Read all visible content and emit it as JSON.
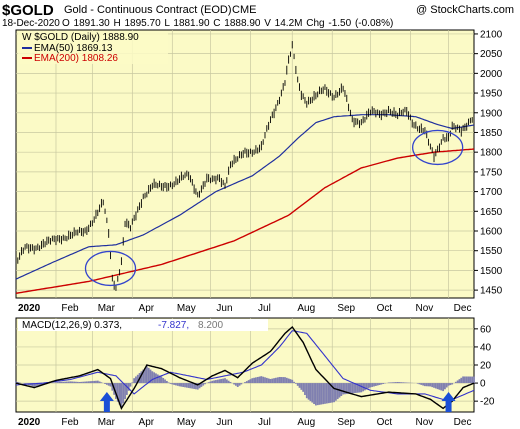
{
  "header": {
    "symbol": "$GOLD",
    "title": "Gold - Continuous Contract (EOD)",
    "exchange": "CME",
    "credit": "@ StockCharts.com",
    "date": "18-Dec-2020",
    "ohlc": "O 1891.30  H 1895.70  L 1881.90  C 1888.90  V 14.2M  Chg -1.50 (-0.08%)"
  },
  "colors": {
    "panel_bg": "#fbfac6",
    "grid": "#c8c8a0",
    "price": "#000000",
    "ema50": "#1f2f9e",
    "ema200": "#cc0000",
    "macd_line": "#000000",
    "signal_line": "#3333cc",
    "histogram": "#8080b0",
    "circle": "#3344cc",
    "arrow": "#1a4fd6"
  },
  "chart_data": [
    {
      "type": "line",
      "panel": "price",
      "legend_position": "top-left",
      "legend": {
        "price": "$GOLD (Daily) 1888.90",
        "ema50": "EMA(50) 1869.13",
        "ema200": "EMA(200) 1808.26"
      },
      "ylim": [
        1430,
        2110
      ],
      "y_ticks": [
        1450,
        1500,
        1550,
        1600,
        1650,
        1700,
        1750,
        1800,
        1850,
        1900,
        1950,
        2000,
        2050,
        2100
      ],
      "x_ticks": [
        "2020",
        "Feb",
        "Mar",
        "Apr",
        "May",
        "Jun",
        "Jul",
        "Aug",
        "Sep",
        "Oct",
        "Nov",
        "Dec"
      ],
      "x_tick_days": [
        0,
        22,
        42,
        64,
        86,
        107,
        129,
        152,
        174,
        195,
        217,
        238
      ],
      "x_range_days": [
        0,
        252
      ],
      "price": {
        "days": [
          0,
          5,
          10,
          18,
          25,
          32,
          38,
          44,
          48,
          51,
          53,
          55,
          58,
          60,
          63,
          66,
          70,
          75,
          80,
          85,
          90,
          95,
          100,
          105,
          108,
          112,
          115,
          118,
          122,
          126,
          130,
          135,
          140,
          145,
          148,
          150,
          152,
          155,
          157,
          160,
          165,
          170,
          175,
          180,
          185,
          190,
          195,
          200,
          205,
          210,
          215,
          218,
          222,
          225,
          228,
          230,
          233,
          235,
          238,
          240,
          245,
          250,
          252
        ],
        "values": [
          1518,
          1555,
          1560,
          1570,
          1585,
          1590,
          1600,
          1640,
          1670,
          1595,
          1480,
          1460,
          1525,
          1620,
          1605,
          1640,
          1690,
          1715,
          1710,
          1720,
          1730,
          1740,
          1695,
          1730,
          1725,
          1735,
          1720,
          1770,
          1780,
          1800,
          1805,
          1810,
          1880,
          1940,
          1980,
          2030,
          2065,
          1980,
          1950,
          1930,
          1940,
          1960,
          1945,
          1960,
          1880,
          1880,
          1900,
          1895,
          1910,
          1890,
          1905,
          1880,
          1860,
          1850,
          1810,
          1790,
          1820,
          1840,
          1835,
          1860,
          1855,
          1885,
          1890
        ]
      },
      "ema50": {
        "days": [
          0,
          20,
          40,
          55,
          70,
          90,
          110,
          130,
          145,
          155,
          165,
          175,
          190,
          205,
          220,
          232,
          240,
          252
        ],
        "values": [
          1478,
          1520,
          1560,
          1565,
          1590,
          1640,
          1700,
          1740,
          1790,
          1835,
          1875,
          1890,
          1895,
          1895,
          1890,
          1870,
          1860,
          1869
        ]
      },
      "ema200": {
        "days": [
          0,
          40,
          80,
          120,
          150,
          170,
          190,
          210,
          230,
          252
        ],
        "values": [
          1442,
          1472,
          1515,
          1575,
          1640,
          1710,
          1760,
          1785,
          1800,
          1808
        ]
      },
      "annotations": [
        {
          "shape": "circle",
          "day": 52,
          "value": 1505
        },
        {
          "shape": "circle",
          "day": 232,
          "value": 1812
        }
      ]
    },
    {
      "type": "line",
      "panel": "macd",
      "legend_position": "top-left",
      "legend": {
        "macd": "MACD(12,26,9) 0.373,",
        "signal": "-7.827,",
        "hist": "8.200"
      },
      "ylim": [
        -32,
        72
      ],
      "y_ticks": [
        -20,
        0,
        20,
        40,
        60
      ],
      "x_ticks": [
        "2020",
        "Feb",
        "Mar",
        "Apr",
        "May",
        "Jun",
        "Jul",
        "Aug",
        "Sep",
        "Oct",
        "Nov",
        "Dec"
      ],
      "macd": {
        "days": [
          0,
          10,
          22,
          35,
          45,
          52,
          58,
          65,
          72,
          80,
          90,
          100,
          108,
          115,
          122,
          130,
          140,
          148,
          152,
          158,
          165,
          175,
          190,
          205,
          220,
          228,
          235,
          240,
          246,
          252
        ],
        "values": [
          0,
          -5,
          3,
          8,
          15,
          5,
          -28,
          -6,
          20,
          16,
          6,
          -2,
          8,
          14,
          6,
          22,
          35,
          55,
          62,
          45,
          15,
          -6,
          -15,
          -10,
          -12,
          -18,
          -28,
          -20,
          -5,
          0
        ]
      },
      "signal": {
        "days": [
          0,
          15,
          30,
          45,
          55,
          65,
          75,
          85,
          95,
          105,
          115,
          125,
          135,
          145,
          152,
          160,
          170,
          180,
          195,
          210,
          225,
          238,
          252
        ],
        "values": [
          -2,
          0,
          4,
          12,
          8,
          -12,
          4,
          12,
          8,
          4,
          8,
          12,
          20,
          40,
          58,
          55,
          30,
          5,
          -8,
          -12,
          -12,
          -20,
          -8
        ]
      },
      "histogram_note": "derived from macd - signal"
    }
  ],
  "arrows": [
    {
      "day": 50
    },
    {
      "day": 238
    }
  ]
}
